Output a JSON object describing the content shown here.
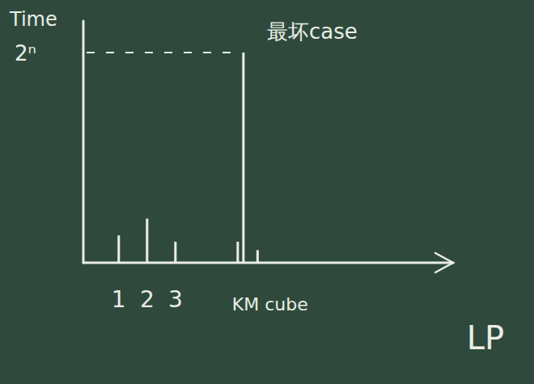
{
  "chart_data": {
    "type": "bar",
    "title": "最坏case",
    "x_label": "LP",
    "y_label": "Time",
    "x": [
      1,
      2,
      3,
      5.2,
      5.4,
      5.9
    ],
    "values": [
      0.13,
      0.21,
      0.1,
      0.1,
      1,
      0.06
    ],
    "xlim": [
      -0.25,
      12.8
    ],
    "xticks": [
      1,
      2,
      3,
      {
        "value": 5.4,
        "label": "KM cube"
      }
    ],
    "ylim": [
      0,
      1.15
    ],
    "yticks": [
      {
        "value": 1,
        "label": "2ⁿ"
      }
    ],
    "color": "#e9ede6",
    "grid": false
  }
}
